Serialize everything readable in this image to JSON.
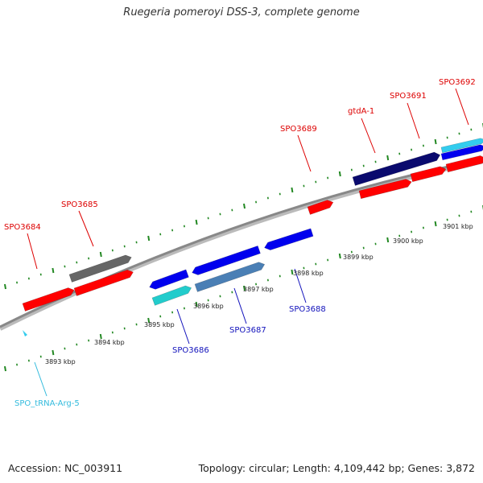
{
  "title": "Ruegeria pomeroyi DSS-3, complete genome",
  "footer": {
    "accession": "Accession: NC_003911",
    "topology": "Topology: circular; Length: 4,109,442 bp; Genes: 3,872"
  },
  "colors": {
    "forward": "#ff0000",
    "reverse": "#0000ee",
    "trna": "#33ccee",
    "backbone": "#888888",
    "tick": "#228822",
    "gray_feature": "#666666",
    "dark_feature": "#0a0a6e",
    "steel_feature": "#4a7fb5",
    "cyan_feature": "#22cccc"
  },
  "genes_forward": [
    "SPO3684",
    "SPO3685",
    "SPO3689",
    "gtdA-1",
    "SPO3691",
    "SPO3692"
  ],
  "genes_reverse": [
    "SPO3686",
    "SPO3687",
    "SPO3688"
  ],
  "trna": [
    "SPO_tRNA-Arg-5"
  ],
  "ticks": [
    "3893 kbp",
    "3894 kbp",
    "3895 kbp",
    "3896 kbp",
    "3897 kbp",
    "3898 kbp",
    "3899 kbp",
    "3900 kbp",
    "3901 kbp"
  ]
}
